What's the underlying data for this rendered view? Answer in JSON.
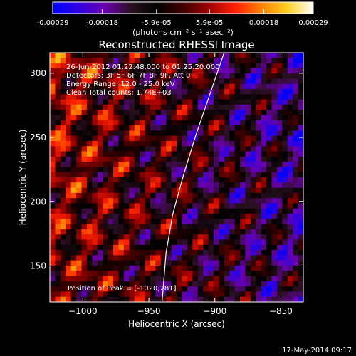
{
  "colorbar": {
    "tick_labels": [
      "-0.00029",
      "-0.00018",
      "-5.9e-05",
      "5.9e-05",
      "0.00018",
      "0.00029"
    ],
    "tick_values": [
      -0.00029,
      -0.00018,
      -5.9e-05,
      5.9e-05,
      0.00018,
      0.00029
    ],
    "range": [
      -0.00029,
      0.00029
    ],
    "units_label": "(photons cm⁻² s⁻¹ asec⁻²)",
    "colors": [
      "#0000ff",
      "#3000e0",
      "#6a00b0",
      "#2a1020",
      "#000000",
      "#400000",
      "#a00000",
      "#ff2000",
      "#ff8000",
      "#ffd020",
      "#ffffff"
    ]
  },
  "chart_data": {
    "type": "heatmap",
    "title": "Reconstructed RHESSI Image",
    "xlabel": "Heliocentric X (arcsec)",
    "ylabel": "Heliocentric Y (arcsec)",
    "xlim": [
      -1025,
      -833
    ],
    "ylim": [
      122,
      316
    ],
    "x_ticks": [
      -1000,
      -950,
      -900,
      -850
    ],
    "x_tick_labels": [
      "−1000",
      "−950",
      "−900",
      "−850"
    ],
    "y_ticks": [
      150,
      200,
      250,
      300
    ],
    "y_tick_labels": [
      "150",
      "200",
      "250",
      "300"
    ],
    "limb": [
      [
        -893,
        316
      ],
      [
        -905,
        280
      ],
      [
        -915,
        250
      ],
      [
        -924,
        220
      ],
      [
        -932,
        190
      ],
      [
        -937,
        160
      ],
      [
        -940,
        122
      ]
    ],
    "annotations": [
      "26-Jun-2012 01:22:48.000 to 01:25:20.000",
      "Detectors: 3F 5F 6F 7F 8F 9F, Att 0",
      "Energy Range: 12.0 - 25.0 keV",
      "Clean    Total counts: 1.74E+03"
    ],
    "peak_label": "Position of Peak = [-1020,281]"
  },
  "footer": {
    "timestamp": "17-May-2014 09:17"
  }
}
